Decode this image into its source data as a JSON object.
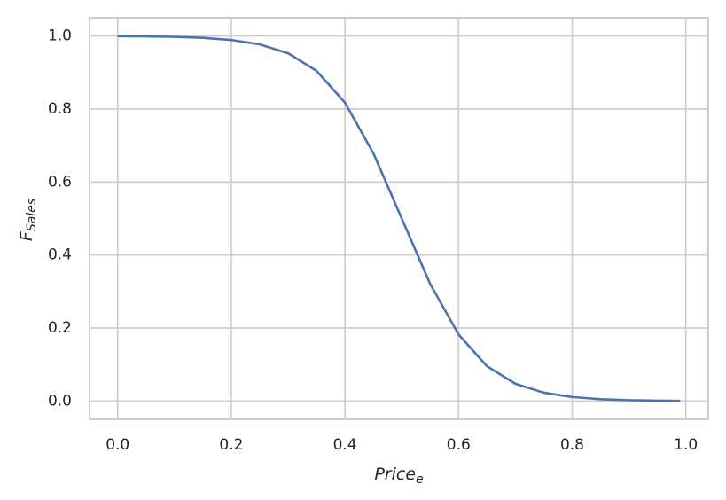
{
  "chart_data": {
    "type": "line",
    "x_label": "Price",
    "x_label_subscript": "e",
    "y_label": "F",
    "y_label_subscript": "Sales",
    "x": [
      0,
      0.05,
      0.1,
      0.15,
      0.2,
      0.25,
      0.3,
      0.35,
      0.4,
      0.45,
      0.5,
      0.55,
      0.6,
      0.65,
      0.7,
      0.75,
      0.8,
      0.85,
      0.9,
      0.95,
      0.99
    ],
    "series": [
      {
        "color": "#4c72b0",
        "values": [
          0.9994,
          0.9988,
          0.9975,
          0.9948,
          0.989,
          0.977,
          0.9526,
          0.9047,
          0.8176,
          0.6792,
          0.5,
          0.3208,
          0.1824,
          0.0953,
          0.0474,
          0.023,
          0.011,
          0.0052,
          0.0025,
          0.0012,
          0.0006
        ]
      }
    ],
    "xlim": [
      -0.0495,
      1.0395
    ],
    "ylim": [
      -0.05,
      1.05
    ],
    "xticks": [
      {
        "value": 0,
        "label": "0.0"
      },
      0.2,
      0.4,
      0.6,
      0.8,
      {
        "value": 1,
        "label": "1.0"
      }
    ],
    "yticks": [
      {
        "value": 0,
        "label": "0.0"
      },
      0.2,
      0.4,
      0.6,
      0.8,
      {
        "value": 1,
        "label": "1.0"
      }
    ],
    "grid": true
  }
}
